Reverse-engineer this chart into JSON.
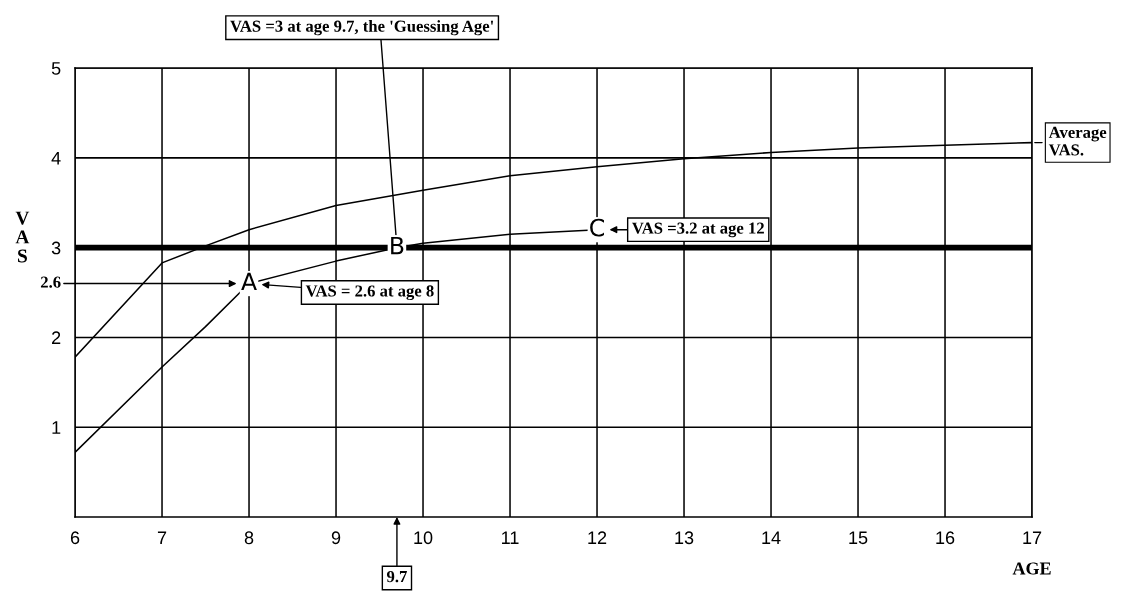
{
  "chart_data": {
    "type": "line",
    "xlabel": "AGE",
    "ylabel": "VAS",
    "xlim": [
      6,
      17
    ],
    "ylim": [
      0,
      5
    ],
    "xticks": [
      6,
      7,
      8,
      9,
      10,
      11,
      12,
      13,
      14,
      15,
      16,
      17
    ],
    "yticks": [
      1,
      2,
      3,
      4,
      5
    ],
    "grid": true,
    "legend": "right",
    "marker": "none",
    "line_style": "solid",
    "series": [
      {
        "name": "Average VAS.",
        "color": "#000000",
        "x": [
          6,
          7,
          7.5,
          8,
          9,
          10,
          11,
          12,
          13,
          14,
          15,
          16,
          17
        ],
        "values": [
          1.78,
          2.83,
          3.02,
          3.2,
          3.47,
          3.64,
          3.8,
          3.9,
          3.99,
          4.06,
          4.11,
          4.14,
          4.17
        ]
      },
      {
        "color": "#000000",
        "x": [
          6,
          7,
          7.5,
          8,
          9,
          9.7,
          10,
          11,
          12
        ],
        "values": [
          0.72,
          1.67,
          2.12,
          2.6,
          2.85,
          3.0,
          3.05,
          3.15,
          3.2
        ]
      }
    ],
    "ref_lines": [
      {
        "axis": "y",
        "value": 3,
        "color": "#000000"
      }
    ],
    "annotations": [
      {
        "text": "VAS =3 at age 9.7, the 'Guessing Age'",
        "x": 9.7,
        "y": 3
      },
      "VAS =3.2 at age 12",
      "VAS = 2.6 at age 8",
      "2.6",
      "9.7",
      {
        "text": "A",
        "x": 8,
        "y": 2.6
      },
      {
        "text": "B",
        "x": 9.7,
        "y": 3
      },
      {
        "text": "C",
        "x": 12,
        "y": 3.2
      }
    ]
  }
}
